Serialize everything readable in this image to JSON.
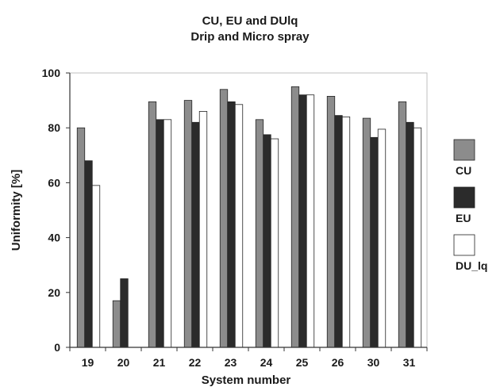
{
  "chart_data": {
    "type": "bar",
    "title": [
      "CU, EU and DUlq",
      "Drip and Micro spray"
    ],
    "xlabel": "System number",
    "ylabel": "Uniformity [%]",
    "ylim": [
      0,
      100
    ],
    "yticks": [
      0,
      20,
      40,
      60,
      80,
      100
    ],
    "grid": false,
    "legend_position": "right",
    "categories": [
      "19",
      "20",
      "21",
      "22",
      "23",
      "24",
      "25",
      "26",
      "30",
      "31"
    ],
    "series": [
      {
        "name": "CU",
        "color": "#8c8c8c",
        "values": [
          80,
          17,
          89.5,
          90,
          94,
          83,
          95,
          91.5,
          83.5,
          89.5
        ]
      },
      {
        "name": "EU",
        "color": "#2b2b2b",
        "values": [
          68,
          25,
          83,
          82,
          89.5,
          77.5,
          92,
          84.5,
          76.5,
          82
        ]
      },
      {
        "name": "DU_lq",
        "color": "#ffffff",
        "values": [
          59,
          null,
          83,
          86,
          88.5,
          76,
          92,
          84,
          79.5,
          80
        ]
      }
    ]
  }
}
